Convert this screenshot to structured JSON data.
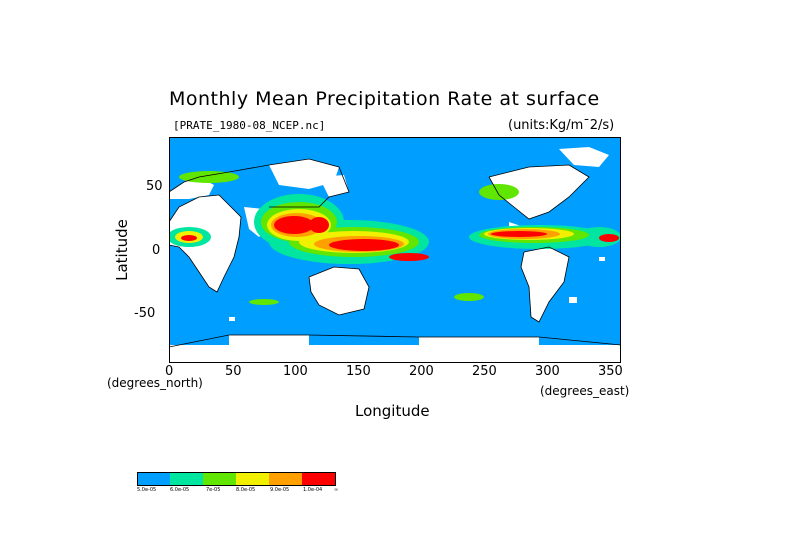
{
  "title": "Monthly Mean Precipitation Rate at surface",
  "file_label": "[PRATE_1980-08_NCEP.nc]",
  "units_label": "(units:Kg/m¯2/s)",
  "ylabel": "Latitude",
  "xlabel": "Longitude",
  "x_unit": "(degrees_north)",
  "y_unit": "(degrees_east)",
  "x_ticks": [
    "0",
    "50",
    "100",
    "150",
    "200",
    "250",
    "300",
    "350"
  ],
  "y_ticks": [
    "50",
    "0",
    "-50"
  ],
  "colors": {
    "ocean_low": "#009eff",
    "c2": "#00e6a0",
    "c3": "#60e600",
    "c4": "#f0f000",
    "c5": "#ffa000",
    "c6": "#ff0000",
    "land": "#ffffff",
    "coast": "#000000"
  },
  "colorbar": {
    "labels": [
      "5.0e-05",
      "6.0e-05",
      "7e-05",
      "8.0e-05",
      "9.0e-05",
      "1.0e-04",
      "∞"
    ]
  }
}
